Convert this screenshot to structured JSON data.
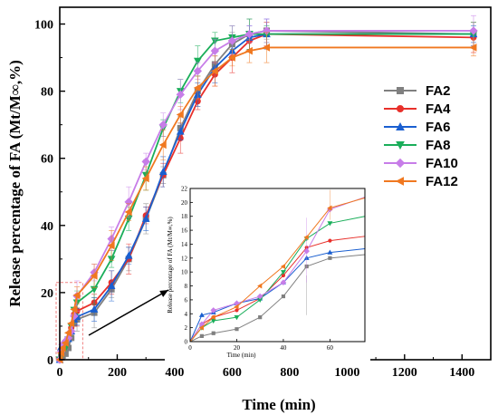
{
  "chart_data": {
    "type": "line",
    "xlabel": "Time (min)",
    "ylabel": "Release percentage of FA (Mt/M∞,%)",
    "xlim": [
      0,
      1500
    ],
    "ylim": [
      0,
      105
    ],
    "xticks": [
      0,
      200,
      400,
      600,
      800,
      1000,
      1200,
      1400
    ],
    "yticks": [
      0,
      20,
      40,
      60,
      80,
      100
    ],
    "legend_position": "right",
    "error_bars": true,
    "series": [
      {
        "name": "FA2",
        "color": "#808080",
        "marker": "square",
        "x": [
          0,
          5,
          10,
          20,
          30,
          40,
          50,
          60,
          120,
          180,
          240,
          300,
          360,
          420,
          480,
          540,
          600,
          660,
          720,
          1440
        ],
        "y": [
          0,
          0.8,
          1.2,
          1.8,
          3.5,
          6.5,
          10.8,
          12,
          14,
          21,
          30,
          42,
          55,
          69,
          80,
          88,
          94,
          97,
          98,
          97
        ]
      },
      {
        "name": "FA4",
        "color": "#e8302b",
        "marker": "circle",
        "x": [
          0,
          5,
          10,
          20,
          30,
          40,
          50,
          60,
          120,
          180,
          240,
          300,
          360,
          420,
          480,
          540,
          600,
          660,
          720,
          1440
        ],
        "y": [
          0,
          2.5,
          3.5,
          4.5,
          6.2,
          9.5,
          13.5,
          14.5,
          17,
          23,
          30,
          43,
          55,
          66,
          77,
          85,
          90,
          95,
          97,
          96
        ]
      },
      {
        "name": "FA6",
        "color": "#1a5fd0",
        "marker": "triangle",
        "x": [
          0,
          5,
          10,
          20,
          30,
          40,
          50,
          60,
          120,
          180,
          240,
          300,
          360,
          420,
          480,
          540,
          600,
          660,
          720,
          1440
        ],
        "y": [
          0,
          3.8,
          4.2,
          5.5,
          6.2,
          8.5,
          12,
          12.8,
          15,
          22,
          31,
          42,
          56,
          68,
          79,
          87,
          92,
          96,
          97,
          97
        ]
      },
      {
        "name": "FA8",
        "color": "#1aae5a",
        "marker": "triangle-down",
        "x": [
          0,
          5,
          10,
          20,
          30,
          40,
          50,
          60,
          120,
          180,
          240,
          300,
          360,
          420,
          480,
          540,
          600,
          660,
          720,
          1440
        ],
        "y": [
          0,
          2,
          3,
          3.5,
          6,
          10,
          14.8,
          17,
          21,
          30,
          42,
          55,
          69,
          80,
          89,
          95,
          96,
          97,
          97,
          97
        ]
      },
      {
        "name": "FA10",
        "color": "#c77de8",
        "marker": "diamond",
        "x": [
          0,
          5,
          10,
          20,
          30,
          40,
          50,
          60,
          120,
          180,
          240,
          300,
          360,
          420,
          480,
          540,
          600,
          660,
          720,
          1440
        ],
        "y": [
          0,
          2.5,
          4.5,
          5.5,
          6.5,
          8.5,
          13,
          19,
          26,
          36,
          47,
          59,
          70,
          79,
          86,
          92,
          95,
          97,
          98,
          98
        ]
      },
      {
        "name": "FA12",
        "color": "#f07820",
        "marker": "triangle-left",
        "x": [
          0,
          5,
          10,
          20,
          30,
          40,
          50,
          60,
          120,
          180,
          240,
          300,
          360,
          420,
          480,
          540,
          600,
          660,
          720,
          1440
        ],
        "y": [
          0,
          2,
          3.5,
          5,
          8,
          10.8,
          15,
          19.2,
          25,
          34,
          44,
          54,
          64,
          73,
          81,
          86,
          90,
          92,
          93,
          93
        ]
      }
    ],
    "inset": {
      "xlabel": "Time (min)",
      "ylabel": "Release percentage of FA (Mt/M∞,%)",
      "xlim": [
        0,
        75
      ],
      "ylim": [
        0,
        22
      ],
      "xticks": [
        0,
        20,
        40,
        60
      ],
      "yticks": [
        0,
        2,
        4,
        6,
        8,
        10,
        12,
        14,
        16,
        18,
        20,
        22
      ],
      "x_end": 75
    }
  }
}
